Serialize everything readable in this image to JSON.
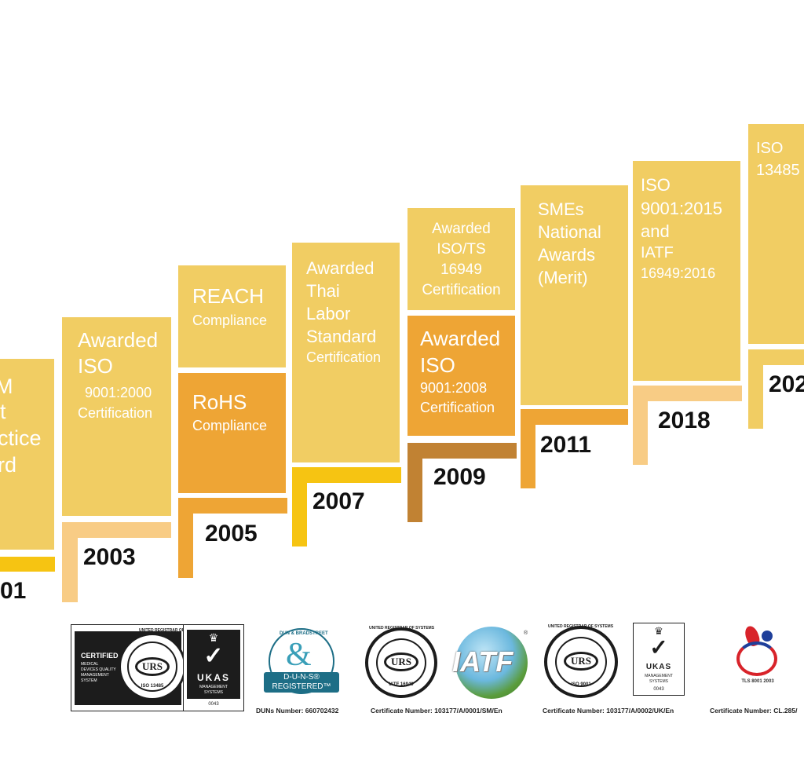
{
  "colors": {
    "light": "#f1cd63",
    "orange": "#eea535",
    "brown": "#c18233",
    "gold": "#f6c412",
    "peach": "#f8cc85",
    "text_dark": "#111111"
  },
  "milestones": [
    {
      "year": "01",
      "lines": [
        "M",
        "t",
        "ctice",
        "rd"
      ]
    },
    {
      "year": "2003",
      "lines": [
        "Awarded",
        "ISO",
        "9001:2000",
        "Certification"
      ]
    },
    {
      "year": "2005",
      "upper": [
        "REACH",
        "Compliance"
      ],
      "lower": [
        "RoHS",
        "Compliance"
      ]
    },
    {
      "year": "2007",
      "lines": [
        "Awarded",
        "Thai",
        "Labor",
        "Standard",
        "Certification"
      ]
    },
    {
      "year": "2009",
      "upper": [
        "Awarded",
        "ISO/TS",
        "16949",
        "Certification"
      ],
      "lower": [
        "Awarded",
        "ISO",
        "9001:2008",
        "Certification"
      ]
    },
    {
      "year": "2011",
      "lines": [
        "SMEs",
        "National",
        "Awards",
        "(Merit)"
      ]
    },
    {
      "year": "2018",
      "lines": [
        "ISO",
        "9001:2015",
        "and",
        "IATF",
        "16949:2016"
      ]
    },
    {
      "year": "202",
      "lines": [
        "ISO",
        "13485"
      ]
    }
  ],
  "logos": {
    "iso13485": {
      "certified": "CERTIFIED",
      "desc": [
        "MEDICAL",
        "DEVICES QUALITY",
        "MANAGEMENT",
        "SYSTEM"
      ],
      "ring": "UNITED REGISTRAR OF SYSTEMS",
      "mark": "URS",
      "std": "ISO 13485"
    },
    "ukas1": {
      "name": "UKAS",
      "sub": [
        "MANAGEMENT",
        "SYSTEMS"
      ],
      "num": "0043"
    },
    "dnb": {
      "ring": "DUN & BRADSTREET",
      "line1": "D-U-N-S®",
      "line2": "REGISTERED™",
      "caption": "DUNs Number: 660702432"
    },
    "iatf_seal": {
      "ring": "UNITED REGISTRAR OF SYSTEMS",
      "mark": "URS",
      "std": "IATF 16949",
      "caption": "Certificate Number: 103177/A/0001/SM/En"
    },
    "iatf_globe": {
      "text": "IATF",
      "reg": "®"
    },
    "iso9001": {
      "ring": "UNITED REGISTRAR OF SYSTEMS",
      "mark": "URS",
      "std": "ISO 9001",
      "caption": "Certificate Number: 103177/A/0002/UK/En"
    },
    "ukas2": {
      "name": "UKAS",
      "sub": [
        "MANAGEMENT",
        "SYSTEMS"
      ],
      "num": "0043"
    },
    "tls": {
      "text": "TLS 8001 2003",
      "caption": "Certificate Number: CL.285/"
    }
  }
}
